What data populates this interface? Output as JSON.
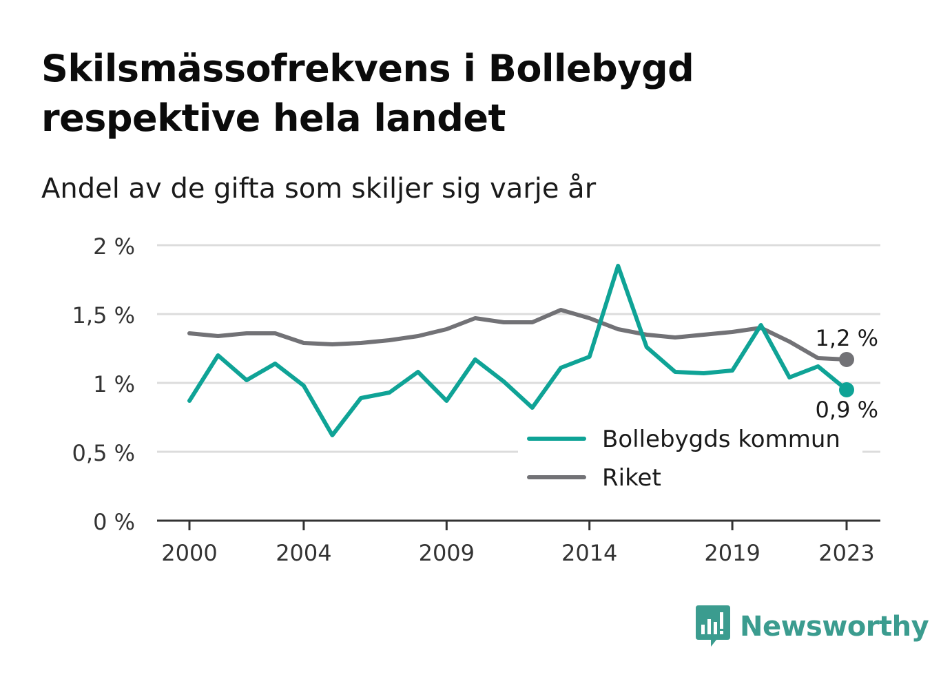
{
  "title": "Skilsmässofrekvens i Bollebygd respektive hela landet",
  "subtitle": "Andel av de gifta som skiljer sig varje år",
  "brand": {
    "name": "Newsworthy",
    "icon": "newsworthy-logo-icon",
    "color": "#3b9c8f"
  },
  "chart_data": {
    "type": "line",
    "title": "Skilsmässofrekvens i Bollebygd respektive hela landet",
    "subtitle": "Andel av de gifta som skiljer sig varje år",
    "xlabel": "",
    "ylabel": "",
    "x": [
      2000,
      2001,
      2002,
      2003,
      2004,
      2005,
      2006,
      2007,
      2008,
      2009,
      2010,
      2011,
      2012,
      2013,
      2014,
      2015,
      2016,
      2017,
      2018,
      2019,
      2020,
      2021,
      2022,
      2023
    ],
    "x_ticks": [
      2000,
      2004,
      2009,
      2014,
      2019,
      2023
    ],
    "x_tick_labels": [
      "2000",
      "2004",
      "2009",
      "2014",
      "2019",
      "2023"
    ],
    "xlim": [
      1999,
      2024
    ],
    "ylim": [
      0,
      2
    ],
    "y_ticks": [
      0,
      0.5,
      1,
      1.5,
      2
    ],
    "y_tick_labels": [
      "0 %",
      "0,5 %",
      "1 %",
      "1,5 %",
      "2 %"
    ],
    "grid": true,
    "legend": "bottom-right",
    "series": [
      {
        "name": "Bollebygds kommun",
        "color": "#0fa396",
        "values": [
          0.87,
          1.2,
          1.02,
          1.14,
          0.98,
          0.62,
          0.89,
          0.93,
          1.08,
          0.87,
          1.17,
          1.01,
          0.82,
          1.11,
          1.19,
          1.85,
          1.26,
          1.08,
          1.07,
          1.09,
          1.42,
          1.04,
          1.12,
          0.95
        ],
        "end_label": "0,9 %"
      },
      {
        "name": "Riket",
        "color": "#727276",
        "values": [
          1.36,
          1.34,
          1.36,
          1.36,
          1.29,
          1.28,
          1.29,
          1.31,
          1.34,
          1.39,
          1.47,
          1.44,
          1.44,
          1.53,
          1.47,
          1.39,
          1.35,
          1.33,
          1.35,
          1.37,
          1.4,
          1.3,
          1.18,
          1.17
        ],
        "end_label": "1,2 %"
      }
    ]
  }
}
